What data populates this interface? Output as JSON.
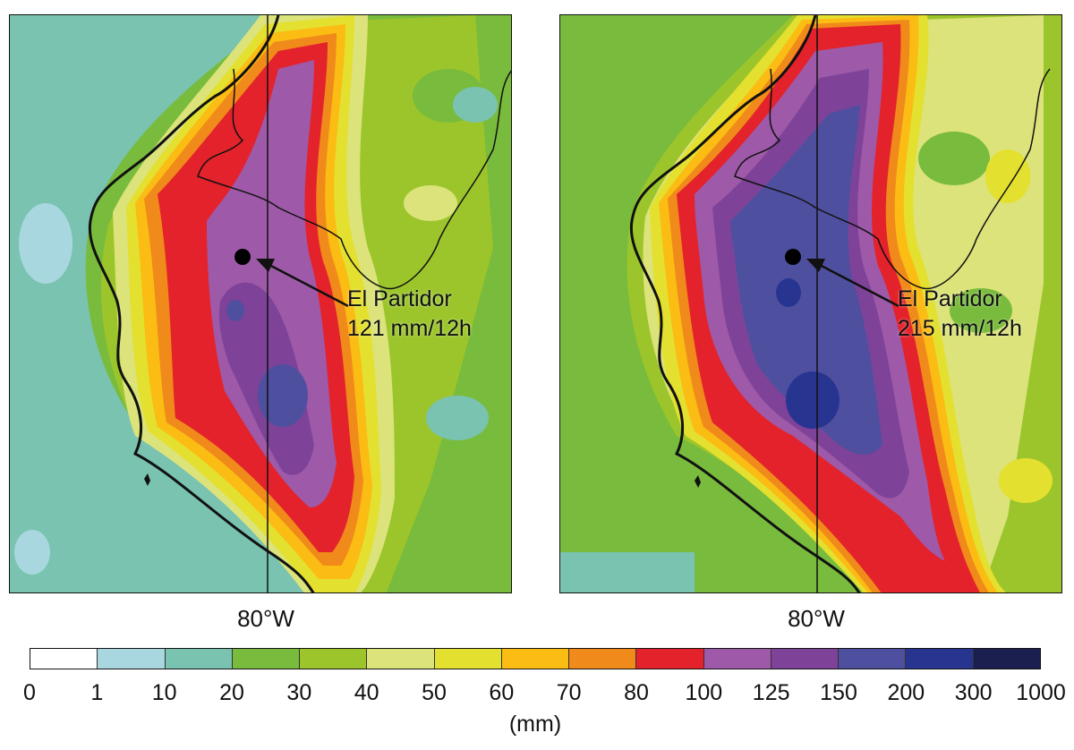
{
  "panels": [
    {
      "longitude_label": "80°W",
      "station": {
        "name": "El Partidor",
        "value_text": "121 mm/12h"
      }
    },
    {
      "longitude_label": "80°W",
      "station": {
        "name": "El Partidor",
        "value_text": "215 mm/12h"
      }
    }
  ],
  "colorbar": {
    "unit": "(mm)",
    "ticks": [
      "0",
      "1",
      "10",
      "20",
      "30",
      "40",
      "50",
      "60",
      "70",
      "80",
      "100",
      "125",
      "150",
      "200",
      "300",
      "1000"
    ],
    "colors": [
      "#ffffff",
      "#a9d7df",
      "#79c3b0",
      "#79bb3c",
      "#9cc52c",
      "#dbe37a",
      "#e4e02f",
      "#fbbc14",
      "#f08a1a",
      "#e3222b",
      "#9e5aa8",
      "#7e4399",
      "#4f4f9f",
      "#273590",
      "#1b1f4f"
    ]
  }
}
